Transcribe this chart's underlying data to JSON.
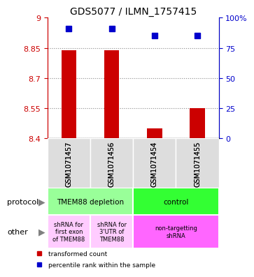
{
  "title": "GDS5077 / ILMN_1757415",
  "samples": [
    "GSM1071457",
    "GSM1071456",
    "GSM1071454",
    "GSM1071455"
  ],
  "bar_values": [
    8.84,
    8.84,
    8.45,
    8.55
  ],
  "dot_values": [
    91,
    91,
    85,
    85
  ],
  "ylim_left": [
    8.4,
    9.0
  ],
  "ylim_right": [
    0,
    100
  ],
  "yticks_left": [
    8.4,
    8.55,
    8.7,
    8.85,
    9.0
  ],
  "yticks_right": [
    0,
    25,
    50,
    75,
    100
  ],
  "ytick_labels_left": [
    "8.4",
    "8.55",
    "8.7",
    "8.85",
    "9"
  ],
  "ytick_labels_right": [
    "0",
    "25",
    "50",
    "75",
    "100%"
  ],
  "bar_color": "#cc0000",
  "dot_color": "#0000cc",
  "bar_bottom": 8.4,
  "protocol_row": [
    {
      "label": "TMEM88 depletion",
      "span": [
        0,
        2
      ],
      "color": "#99ff99"
    },
    {
      "label": "control",
      "span": [
        2,
        4
      ],
      "color": "#33ff33"
    }
  ],
  "other_row": [
    {
      "label": "shRNA for\nfirst exon\nof TMEM88",
      "span": [
        0,
        1
      ],
      "color": "#ffccff"
    },
    {
      "label": "shRNA for\n3'UTR of\nTMEM88",
      "span": [
        1,
        2
      ],
      "color": "#ffccff"
    },
    {
      "label": "non-targetting\nshRNA",
      "span": [
        2,
        4
      ],
      "color": "#ff66ff"
    }
  ],
  "legend_items": [
    {
      "color": "#cc0000",
      "label": "transformed count"
    },
    {
      "color": "#0000cc",
      "label": "percentile rank within the sample"
    }
  ],
  "xlabel_protocol": "protocol",
  "xlabel_other": "other",
  "gridline_color": "#888888",
  "gridline_style": "dotted"
}
